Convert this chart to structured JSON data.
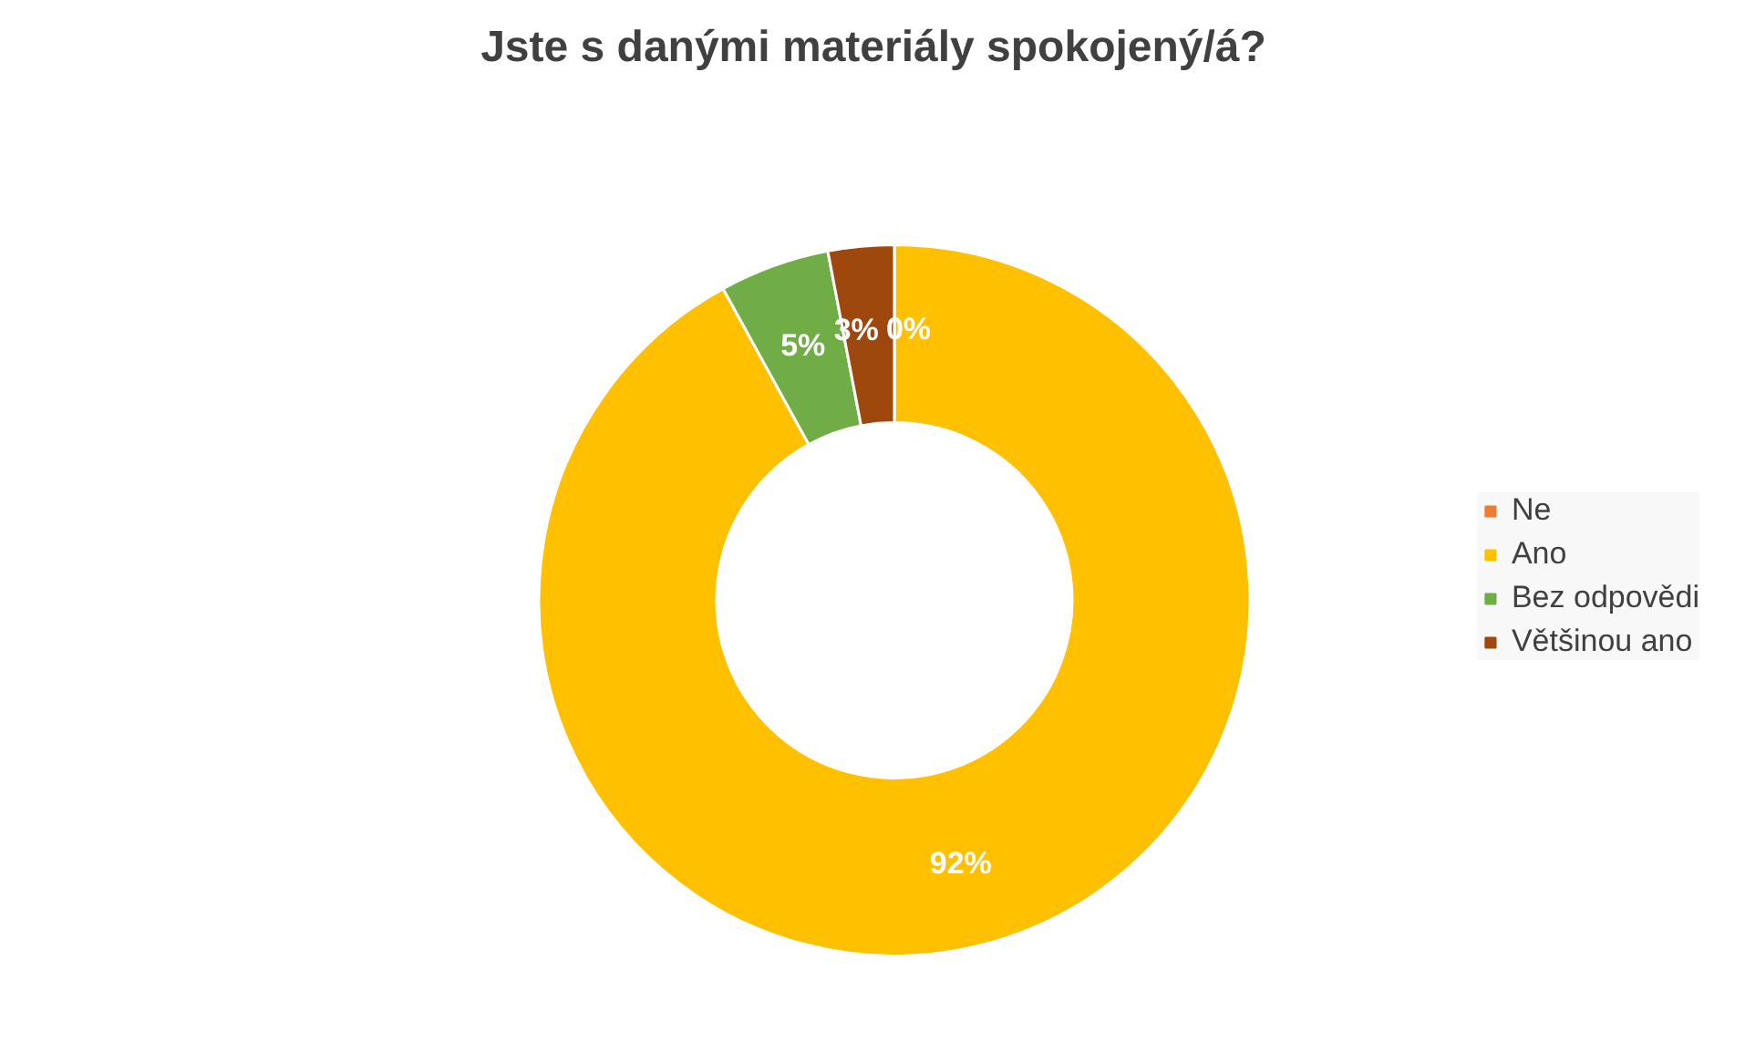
{
  "chart_data": {
    "type": "donut",
    "title": "Jste s danými materiály spokojený/á?",
    "categories": [
      "Ne",
      "Ano",
      "Bez odpovědi",
      "Většinou ano"
    ],
    "values": [
      0,
      92,
      5,
      3
    ],
    "colors": [
      "#ed7d31",
      "#ffc000",
      "#70ad47",
      "#9e480e"
    ],
    "value_labels": [
      "0%",
      "92%",
      "5%",
      "3%"
    ],
    "legend": "right"
  }
}
